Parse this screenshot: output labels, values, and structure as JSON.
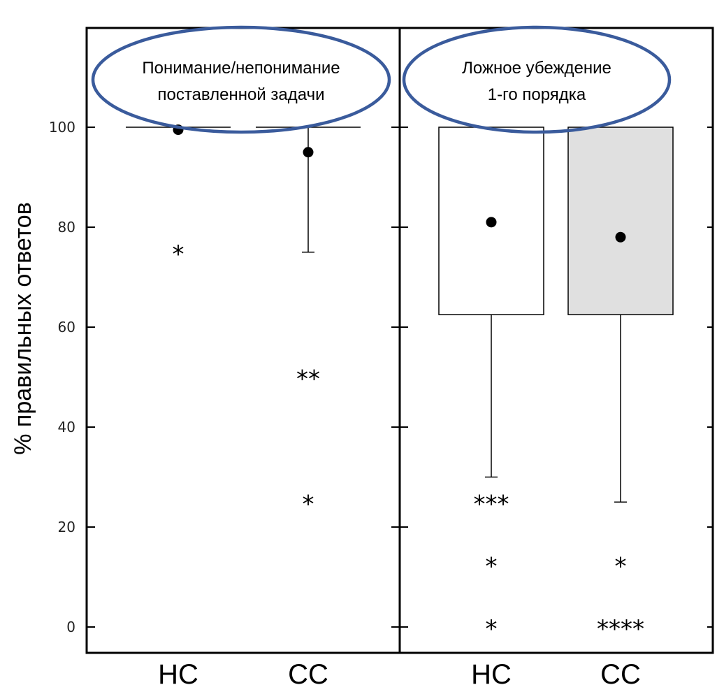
{
  "chart_data": {
    "type": "box",
    "ylabel": "% правильных ответов",
    "ylim": [
      -5,
      120
    ],
    "yticks": [
      0,
      20,
      40,
      60,
      80,
      100
    ],
    "colors": {
      "ellipse": "#3a5b9c",
      "box_cc": "#e0e0e0",
      "box_hc": "#ffffff"
    },
    "panels": [
      {
        "title_lines": [
          "Понимание/непонимание",
          "поставленной задачи"
        ],
        "groups": [
          {
            "label": "HC",
            "q1": 100,
            "median": 100,
            "q3": 100,
            "whisker_low": 100,
            "whisker_high": 100,
            "mean": 99.5,
            "outliers": [
              {
                "value": 75,
                "marker": "*"
              }
            ]
          },
          {
            "label": "CC",
            "q1": 100,
            "median": 100,
            "q3": 100,
            "whisker_low": 75,
            "whisker_high": 100,
            "mean": 95,
            "outliers": [
              {
                "value": 50,
                "marker": "**"
              },
              {
                "value": 25,
                "marker": "*"
              }
            ]
          }
        ]
      },
      {
        "title_lines": [
          "Ложное убеждение",
          "1-го порядка"
        ],
        "groups": [
          {
            "label": "HC",
            "q1": 62.5,
            "median": 100,
            "q3": 100,
            "whisker_low": 30,
            "whisker_high": 100,
            "mean": 81,
            "outliers": [
              {
                "value": 25,
                "marker": "***"
              },
              {
                "value": 12.5,
                "marker": "*"
              },
              {
                "value": 0,
                "marker": "*"
              }
            ]
          },
          {
            "label": "CC",
            "q1": 62.5,
            "median": 100,
            "q3": 100,
            "whisker_low": 25,
            "whisker_high": 100,
            "mean": 78,
            "outliers": [
              {
                "value": 12.5,
                "marker": "*"
              },
              {
                "value": 0,
                "marker": "****"
              }
            ]
          }
        ]
      }
    ]
  }
}
